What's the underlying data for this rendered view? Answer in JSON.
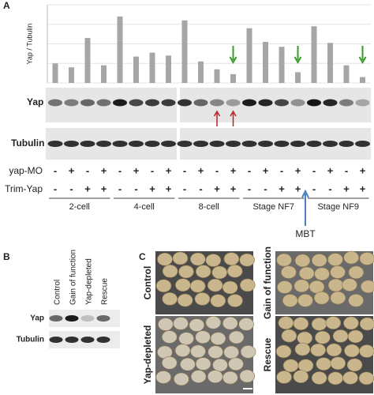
{
  "panel_a": {
    "label": "A",
    "chart_data": {
      "type": "bar",
      "y_label": "Yap / Tubulin",
      "categories": [
        null,
        null,
        null,
        null,
        null,
        null,
        null,
        null,
        null,
        null,
        null,
        null,
        null,
        null,
        null,
        null,
        null,
        null,
        null,
        null
      ],
      "values": [
        1.0,
        0.8,
        2.3,
        0.9,
        3.4,
        1.35,
        1.55,
        1.4,
        3.2,
        1.1,
        0.7,
        0.45,
        2.8,
        2.1,
        1.85,
        0.55,
        2.9,
        2.05,
        0.9,
        0.3
      ],
      "color": "#a6a6a6",
      "ylim": [
        0,
        4
      ],
      "yticks": [
        0,
        1,
        2,
        3,
        4
      ],
      "grid": true
    },
    "blot_labels": [
      "Yap",
      "Tubulin"
    ],
    "rows": [
      {
        "label": "yap-MO",
        "signs": [
          "-",
          "+",
          "-",
          "+",
          "-",
          "+",
          "-",
          "+",
          "-",
          "+",
          "-",
          "+",
          "-",
          "+",
          "-",
          "+",
          "-",
          "+",
          "-",
          "+"
        ]
      },
      {
        "label": "Trim-Yap",
        "signs": [
          "-",
          "-",
          "+",
          "+",
          "-",
          "-",
          "+",
          "+",
          "-",
          "-",
          "+",
          "+",
          "-",
          "-",
          "+",
          "+",
          "-",
          "-",
          "+",
          "+"
        ]
      }
    ],
    "groups": [
      "2-cell",
      "4-cell",
      "8-cell",
      "Stage NF7",
      "Stage NF9"
    ],
    "marker": "MBT"
  },
  "panel_b": {
    "label": "B",
    "lanes": [
      "Control",
      "Gain of function",
      "Yap-depleted",
      "Rescue"
    ],
    "rows": [
      "Yap",
      "Tubulin"
    ]
  },
  "panel_c": {
    "label": "C",
    "images": [
      "Control",
      "Gain of function",
      "Yap-depleted",
      "Rescue"
    ]
  }
}
